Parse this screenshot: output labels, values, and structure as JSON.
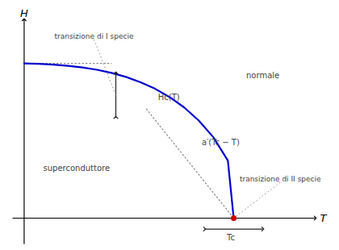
{
  "chart_data": {
    "type": "line",
    "title": "",
    "xlabel": "T",
    "ylabel": "H",
    "x": [
      0.0,
      0.05,
      0.1,
      0.15,
      0.2,
      0.25,
      0.3,
      0.35,
      0.4,
      0.45,
      0.5,
      0.55,
      0.6,
      0.65,
      0.7,
      0.72
    ],
    "values": [
      0.78,
      0.778,
      0.774,
      0.768,
      0.76,
      0.748,
      0.732,
      0.712,
      0.685,
      0.652,
      0.61,
      0.558,
      0.492,
      0.408,
      0.29,
      0.0
    ],
    "color": "#0000cc",
    "xlim": [
      -0.04,
      1.0
    ],
    "ylim": [
      -0.13,
      1.0
    ],
    "tick_labels": false,
    "grid": false,
    "reference_lines": [
      {
        "x": [
          0.0,
          0.3
        ],
        "y": [
          0.78,
          0.78
        ],
        "color": "#888888",
        "line_style": "dotted"
      },
      {
        "x": [
          0.42,
          0.72
        ],
        "y": [
          0.55,
          0.0
        ],
        "color": "#888888",
        "line_style": "dotted"
      }
    ],
    "points": [
      {
        "x": 0.72,
        "y": 0.0,
        "color": "#cc0000"
      }
    ],
    "arrows": [
      {
        "x1": 0.315,
        "y1": 0.508,
        "x2": 0.315,
        "y2": 0.732,
        "color": "#222222"
      },
      {
        "x1": 0.62,
        "y1": -0.055,
        "x2": 0.82,
        "y2": -0.055,
        "color": "#222222"
      }
    ],
    "annotations": [
      {
        "text": "normale",
        "x": 0.82,
        "y": 0.72,
        "align": "center",
        "color": "#444444"
      },
      {
        "text": "superconduttore",
        "x": 0.18,
        "y": 0.25,
        "align": "center",
        "color": "#444444"
      },
      {
        "text": "Hc(T)",
        "x": 0.46,
        "y": 0.61,
        "align": "left",
        "color": "#444444"
      },
      {
        "text": "a′(Tc − T)",
        "x": 0.61,
        "y": 0.38,
        "align": "left",
        "color": "#444444"
      },
      {
        "text": "Tc",
        "x": 0.71,
        "y": -0.1,
        "align": "center",
        "color": "#444444"
      }
    ],
    "callouts": [
      {
        "text": "transizione di I specie",
        "x": 0.24,
        "y": 0.9,
        "target_x": 0.315,
        "target_y": 0.62,
        "color": "#444444",
        "line_color": "#888888"
      },
      {
        "text": "transizione di II specie",
        "x": 0.88,
        "y": 0.18,
        "target_x": 0.72,
        "target_y": 0.0,
        "color": "#444444",
        "line_color": "#888888"
      }
    ]
  }
}
